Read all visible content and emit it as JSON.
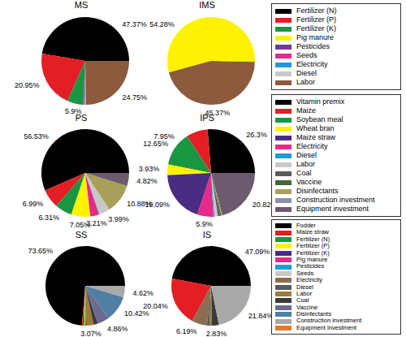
{
  "chart_data": [
    {
      "type": "pie",
      "title": "MS",
      "data_labels": true,
      "categories": [
        "Fertilizer (N)",
        "Fertilizer (P)",
        "Fertilizer (K)",
        "Pesticides",
        "Seeds",
        "Electricity",
        "Diesel",
        "Labor"
      ],
      "values": [
        47.37,
        20.95,
        5.9,
        0.3,
        0.35,
        0.2,
        0.18,
        24.75
      ],
      "value_labels": [
        "47.37%",
        "20.95%",
        "5.9%",
        null,
        null,
        null,
        null,
        "24.75%"
      ],
      "colors": [
        "#000000",
        "#e31e24",
        "#1a9641",
        "#6a3d9a",
        "#e7298a",
        "#1f9bd7",
        "#c8c8c8",
        "#8c5a3c"
      ]
    },
    {
      "type": "pie",
      "title": "IMS",
      "data_labels": true,
      "categories": [
        "Pig manure",
        "Labor",
        "Diesel"
      ],
      "values": [
        54.28,
        45.37,
        0.35
      ],
      "value_labels": [
        "54.28%",
        "45.37%",
        null
      ],
      "colors": [
        "#fff200",
        "#8c5a3c",
        "#c8c8c8"
      ]
    },
    {
      "type": "pie",
      "title": "PS",
      "data_labels": true,
      "categories": [
        "Vitamin premix",
        "Maize",
        "Soybean meal",
        "Wheat bran",
        "Electricity",
        "Diesel",
        "Labor",
        "Disinfectants",
        "Equipment investment"
      ],
      "values": [
        56.53,
        6.99,
        6.31,
        7.05,
        3.21,
        0.22,
        3.99,
        10.88,
        4.82
      ],
      "value_labels": [
        "56.53%",
        "6.99%",
        "6.31%",
        "7.05%",
        "3.21%",
        null,
        "3.99%",
        "10.88%",
        "4.82%"
      ],
      "colors": [
        "#000000",
        "#e31e24",
        "#1a9641",
        "#fff200",
        "#e7298a",
        "#1f9bd7",
        "#c8c8c8",
        "#a89f5b",
        "#6e5a6e"
      ]
    },
    {
      "type": "pie",
      "title": "IPS",
      "data_labels": true,
      "categories": [
        "Vitamin premix",
        "Maize",
        "Soybean meal",
        "Wheat bran",
        "Maize straw",
        "Electricity",
        "Diesel",
        "Labor",
        "Coal",
        "Vaccine",
        "Disinfectants",
        "Equipment investment"
      ],
      "values": [
        26.3,
        7.95,
        12.65,
        3.93,
        19.09,
        5.9,
        0.5,
        1.2,
        0.8,
        0.46,
        0.4,
        20.82
      ],
      "value_labels": [
        "26.3%",
        "7.95%",
        "12.65%",
        "3.93%",
        "19.09%",
        "5.9%",
        null,
        null,
        null,
        null,
        null,
        "20.82%"
      ],
      "colors": [
        "#000000",
        "#e31e24",
        "#1a9641",
        "#fff200",
        "#4b2c83",
        "#e7298a",
        "#1f9bd7",
        "#c8c8c8",
        "#5a5a5a",
        "#3f6b35",
        "#a89f5b",
        "#6e5a6e"
      ]
    },
    {
      "type": "pie",
      "title": "SS",
      "data_labels": true,
      "categories": [
        "Fodder",
        "Maize straw",
        "Fertilizer (N)",
        "Fertilizer (P)",
        "Fertilizer (K)",
        "Labor",
        "Coal",
        "Vaccine",
        "Disinfectants",
        "Construction investment"
      ],
      "values": [
        73.65,
        0.6,
        0.5,
        0.3,
        0.28,
        3.07,
        1.7,
        4.86,
        10.42,
        4.62
      ],
      "value_labels": [
        "73.65%",
        null,
        null,
        null,
        null,
        "3.07%",
        null,
        "4.86%",
        "10.42%",
        "4.62%"
      ],
      "colors": [
        "#000000",
        "#e31e24",
        "#1a9641",
        "#fff200",
        "#4b2c83",
        "#9c7a3c",
        "#3a3a3a",
        "#6b6b8f",
        "#4f7fa3",
        "#a9a9a9"
      ]
    },
    {
      "type": "pie",
      "title": "IS",
      "data_labels": true,
      "categories": [
        "Fodder",
        "Maize straw",
        "Electricity",
        "Diesel",
        "Labor",
        "Coal",
        "Construction investment"
      ],
      "values": [
        47.09,
        20.04,
        6.19,
        1.0,
        1.01,
        2.83,
        21.84
      ],
      "value_labels": [
        "47.09%",
        "20.04%",
        "6.19%",
        null,
        null,
        "2.83%",
        "21.84%"
      ],
      "colors": [
        "#000000",
        "#e31e24",
        "#8c6d4f",
        "#5a5a5a",
        "#9c7a3c",
        "#3a3a3a",
        "#a9a9a9"
      ]
    }
  ],
  "legends": [
    {
      "items": [
        "Fertilizer (N)",
        "Fertilizer (P)",
        "Fertilizer (K)",
        "Pig manure",
        "Pesticides",
        "Seeds",
        "Electricity",
        "Diesel",
        "Labor"
      ],
      "colors": [
        "#000000",
        "#e31e24",
        "#1a9641",
        "#fff200",
        "#6a3d9a",
        "#e7298a",
        "#1f9bd7",
        "#c8c8c8",
        "#8c5a3c"
      ]
    },
    {
      "items": [
        "Vitamin premix",
        "Maize",
        "Soybean meal",
        "Wheat bran",
        "Maize straw",
        "Electricity",
        "Diesel",
        "Labor",
        "Coal",
        "Vaccine",
        "Disinfectants",
        "Construction investment",
        "Equipment investment"
      ],
      "colors": [
        "#000000",
        "#e31e24",
        "#1a9641",
        "#fff200",
        "#4b2c83",
        "#e7298a",
        "#1f9bd7",
        "#c8c8c8",
        "#5a5a5a",
        "#3f6b35",
        "#a89f5b",
        "#8f8fa8",
        "#6e5a6e"
      ]
    },
    {
      "items": [
        "Fodder",
        "Maize straw",
        "Fertilizer (N)",
        "Fertilizer (P)",
        "Fertilizer (K)",
        "Pig manure",
        "Pesticides",
        "Seeds",
        "Electricity",
        "Diesel",
        "Labor",
        "Coal",
        "Vaccine",
        "Disinfectants",
        "Construction investment",
        "Equipment investment"
      ],
      "colors": [
        "#000000",
        "#e31e24",
        "#1a9641",
        "#fff200",
        "#4b2c83",
        "#e7298a",
        "#1f9bd7",
        "#c8c8c8",
        "#8c6d4f",
        "#5a5a5a",
        "#9c7a3c",
        "#3a3a3a",
        "#6b6b8f",
        "#4f7fa3",
        "#a9a9a9",
        "#e07b28"
      ]
    }
  ]
}
